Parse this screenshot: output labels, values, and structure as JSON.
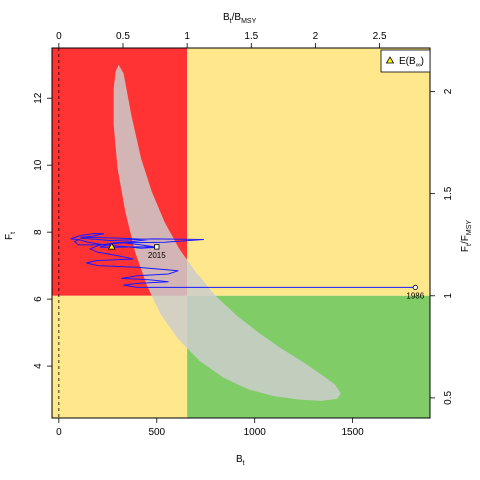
{
  "chart_data": {
    "type": "line",
    "xlabel_main": "B",
    "xlabel_sub": "t",
    "ylabel_main": "F",
    "ylabel_sub": "t",
    "top_label_main": "B",
    "top_label_sub": "t",
    "top_label_div": "/B",
    "top_label_msy": "MSY",
    "right_label_main": "F",
    "right_label_sub": "t",
    "right_label_div": "/F",
    "right_label_msy": "MSY",
    "xlim": [
      -35,
      1895
    ],
    "ylim": [
      2.45,
      13.5
    ],
    "x_ticks": [
      0,
      500,
      1000,
      1500
    ],
    "x_tick_labels": [
      "0",
      "500",
      "1000",
      "1500"
    ],
    "y_ticks": [
      4,
      6,
      8,
      10,
      12
    ],
    "y_tick_labels": [
      "4",
      "6",
      "8",
      "10",
      "12"
    ],
    "top_ticks": [
      0,
      0.5,
      1,
      1.5,
      2,
      2.5
    ],
    "top_tick_labels": [
      "0",
      "0.5",
      "1",
      "1.5",
      "2",
      "2.5"
    ],
    "right_ticks": [
      0.5,
      1,
      1.5,
      2
    ],
    "right_tick_labels": [
      "0.5",
      "1",
      "1.5",
      "2"
    ],
    "bmsy": 655,
    "fmsy": 6.1,
    "colors": {
      "red_zone": "#ff3333",
      "yellow_zone": "#ffe88c",
      "green_zone": "#80cc66",
      "ellipse": "#cccccc",
      "trajectory": "#1a1aff",
      "marker_fill": "#ffff00"
    },
    "legend": {
      "label_main": "E(B",
      "label_sub": "∞",
      "label_end": ")",
      "position": "top-right"
    },
    "annotations": {
      "first_year": "1986",
      "last_year": "2015"
    },
    "confidence_region": [
      [
        305,
        13.0
      ],
      [
        330,
        12.75
      ],
      [
        370,
        11.5
      ],
      [
        420,
        10.2
      ],
      [
        475,
        9.2
      ],
      [
        540,
        8.3
      ],
      [
        615,
        7.5
      ],
      [
        700,
        6.8
      ],
      [
        800,
        6.1
      ],
      [
        910,
        5.5
      ],
      [
        1020,
        5.0
      ],
      [
        1130,
        4.55
      ],
      [
        1240,
        4.15
      ],
      [
        1340,
        3.75
      ],
      [
        1410,
        3.45
      ],
      [
        1440,
        3.18
      ],
      [
        1420,
        3.02
      ],
      [
        1340,
        2.96
      ],
      [
        1230,
        3.0
      ],
      [
        1100,
        3.1
      ],
      [
        970,
        3.3
      ],
      [
        840,
        3.65
      ],
      [
        720,
        4.15
      ],
      [
        610,
        4.8
      ],
      [
        520,
        5.55
      ],
      [
        450,
        6.4
      ],
      [
        390,
        7.4
      ],
      [
        340,
        8.6
      ],
      [
        300,
        9.9
      ],
      [
        280,
        11.2
      ],
      [
        280,
        12.3
      ],
      [
        290,
        12.8
      ],
      [
        305,
        13.0
      ]
    ],
    "trajectory": [
      [
        1820,
        6.35
      ],
      [
        400,
        6.35
      ],
      [
        330,
        6.42
      ],
      [
        400,
        6.47
      ],
      [
        560,
        6.52
      ],
      [
        460,
        6.58
      ],
      [
        320,
        6.62
      ],
      [
        400,
        6.7
      ],
      [
        560,
        6.75
      ],
      [
        610,
        6.85
      ],
      [
        400,
        6.95
      ],
      [
        200,
        7.0
      ],
      [
        140,
        7.08
      ],
      [
        190,
        7.15
      ],
      [
        380,
        7.2
      ],
      [
        300,
        7.3
      ],
      [
        200,
        7.4
      ],
      [
        160,
        7.5
      ],
      [
        200,
        7.6
      ],
      [
        280,
        7.68
      ],
      [
        540,
        7.7
      ],
      [
        740,
        7.78
      ],
      [
        480,
        7.8
      ],
      [
        260,
        7.75
      ],
      [
        120,
        7.82
      ],
      [
        80,
        7.72
      ],
      [
        100,
        7.62
      ],
      [
        200,
        7.62
      ],
      [
        330,
        7.68
      ],
      [
        420,
        7.62
      ],
      [
        500,
        7.55
      ],
      [
        420,
        7.52
      ],
      [
        340,
        7.57
      ],
      [
        270,
        7.6
      ],
      [
        200,
        7.65
      ],
      [
        150,
        7.7
      ],
      [
        100,
        7.78
      ],
      [
        60,
        7.8
      ],
      [
        110,
        7.9
      ],
      [
        180,
        7.96
      ],
      [
        230,
        7.95
      ],
      [
        170,
        7.88
      ],
      [
        110,
        7.85
      ],
      [
        200,
        7.84
      ],
      [
        320,
        7.82
      ],
      [
        460,
        7.78
      ],
      [
        380,
        7.72
      ],
      [
        280,
        7.68
      ],
      [
        210,
        7.55
      ],
      [
        290,
        7.55
      ],
      [
        390,
        7.56
      ],
      [
        500,
        7.56
      ]
    ],
    "start_point": [
      1820,
      6.35
    ],
    "end_point": [
      500,
      7.56
    ],
    "expected_point": [
      270,
      7.56
    ]
  }
}
